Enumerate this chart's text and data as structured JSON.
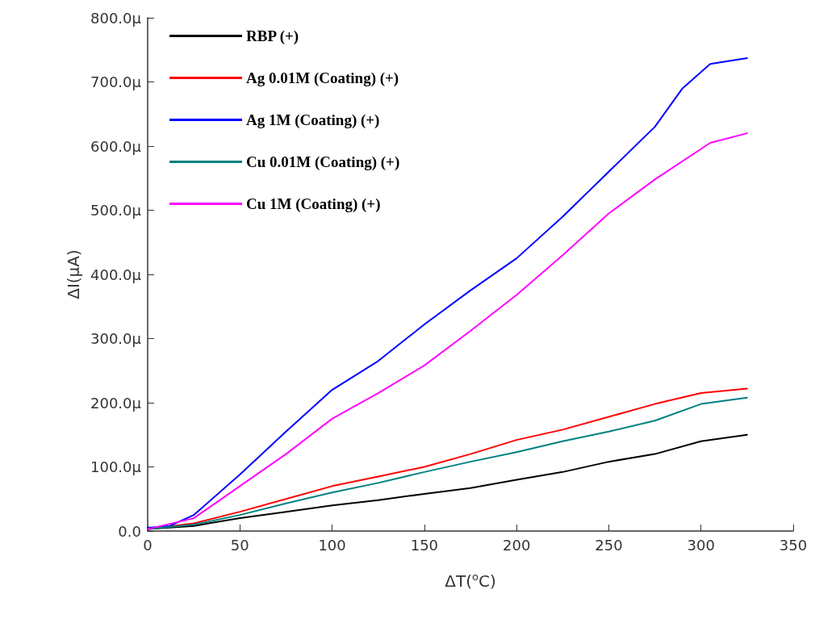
{
  "chart_data": {
    "type": "line",
    "xlabel": "ΔT($^{o}$C)",
    "ylabel": "ΔI(μA)",
    "xlim": [
      0,
      350
    ],
    "xticks": [
      0,
      50,
      100,
      150,
      200,
      250,
      300,
      350
    ],
    "ylim": [
      0,
      800
    ],
    "yticks": [
      {
        "value": 0,
        "label": "0.0"
      },
      {
        "value": 100,
        "label": "100.0μ"
      },
      {
        "value": 200,
        "label": "200.0μ"
      },
      {
        "value": 300,
        "label": "300.0μ"
      },
      {
        "value": 400,
        "label": "400.0μ"
      },
      {
        "value": 500,
        "label": "500.0μ"
      },
      {
        "value": 600,
        "label": "600.0μ"
      },
      {
        "value": 700,
        "label": "700.0μ"
      },
      {
        "value": 800,
        "label": "800.0μ"
      }
    ],
    "grid": false,
    "legend": "top left",
    "marker": "none",
    "line_style": "solid",
    "series": [
      {
        "name": "RBP (+)",
        "color": "#000000",
        "x": [
          0,
          25,
          50,
          75,
          100,
          125,
          150,
          175,
          200,
          225,
          250,
          275,
          300,
          325
        ],
        "values": [
          3,
          8,
          20,
          30,
          40,
          48,
          58,
          67,
          80,
          92,
          108,
          120,
          140,
          150
        ]
      },
      {
        "name": "Ag 0.01M (Coating) (+)",
        "color": "#ff0000",
        "x": [
          0,
          25,
          50,
          75,
          100,
          125,
          150,
          175,
          200,
          225,
          250,
          275,
          300,
          325
        ],
        "values": [
          3,
          12,
          30,
          50,
          70,
          85,
          100,
          120,
          142,
          158,
          178,
          198,
          215,
          222
        ]
      },
      {
        "name": "Ag 1M (Coating) (+)",
        "color": "#0000ff",
        "x": [
          0,
          12,
          25,
          50,
          75,
          100,
          125,
          150,
          175,
          200,
          225,
          250,
          275,
          290,
          305,
          325
        ],
        "values": [
          5,
          8,
          25,
          88,
          155,
          220,
          265,
          322,
          375,
          425,
          490,
          560,
          630,
          690,
          728,
          737
        ]
      },
      {
        "name": "Cu 0.01M (Coating) (+)",
        "color": "#008080",
        "x": [
          0,
          25,
          50,
          75,
          100,
          125,
          150,
          175,
          200,
          225,
          250,
          275,
          300,
          325
        ],
        "values": [
          3,
          10,
          25,
          43,
          60,
          75,
          92,
          108,
          123,
          140,
          155,
          172,
          198,
          208
        ]
      },
      {
        "name": "Cu 1M (Coating) (+)",
        "color": "#ff00ff",
        "x": [
          0,
          25,
          50,
          75,
          100,
          125,
          150,
          175,
          200,
          225,
          250,
          275,
          305,
          325
        ],
        "values": [
          3,
          20,
          70,
          120,
          175,
          215,
          258,
          312,
          368,
          430,
          495,
          548,
          605,
          620
        ]
      }
    ]
  }
}
